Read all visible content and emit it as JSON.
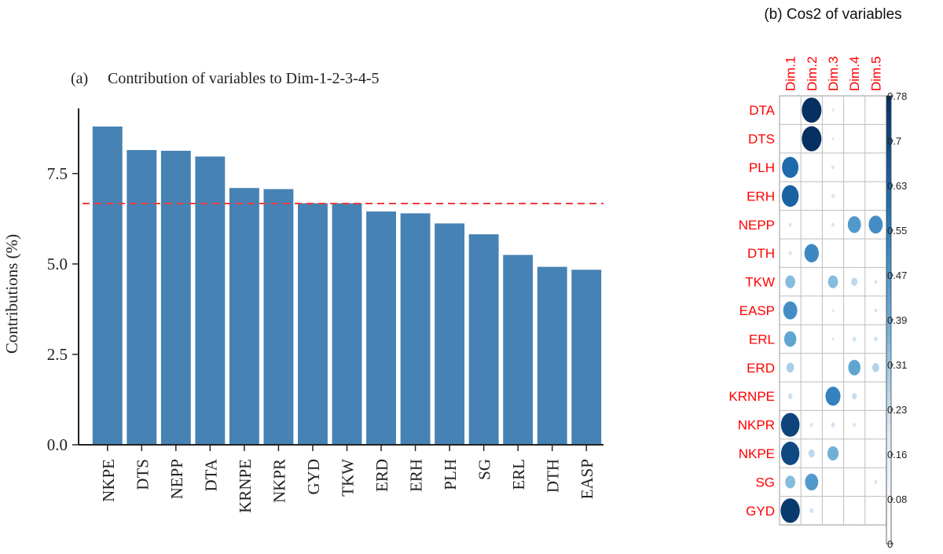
{
  "chart_data": [
    {
      "type": "bar",
      "panel_label": "(a)",
      "title": "Contribution of variables to Dim-1-2-3-4-5",
      "xlabel": "",
      "ylabel": "Contributions (%)",
      "categories": [
        "NKPE",
        "DTS",
        "NEPP",
        "DTA",
        "KRNPE",
        "NKPR",
        "GYD",
        "TKW",
        "ERD",
        "ERH",
        "PLH",
        "SG",
        "ERL",
        "DTH",
        "EASP"
      ],
      "values": [
        8.8,
        8.15,
        8.13,
        7.97,
        7.1,
        7.07,
        6.68,
        6.68,
        6.45,
        6.4,
        6.12,
        5.82,
        5.25,
        4.92,
        4.84
      ],
      "ylim": [
        0,
        9.3
      ],
      "yticks": [
        0.0,
        2.5,
        5.0,
        7.5
      ],
      "ytick_labels": [
        "0.0",
        "2.5",
        "5.0",
        "7.5"
      ],
      "reference_line": 6.67,
      "bar_color": "#4682b4",
      "reference_color": "#f03c3c"
    },
    {
      "type": "heatmap",
      "title": "(b) Cos2 of variables",
      "columns": [
        "Dim.1",
        "Dim.2",
        "Dim.3",
        "Dim.4",
        "Dim.5"
      ],
      "rows": [
        "DTA",
        "DTS",
        "PLH",
        "ERH",
        "NEPP",
        "DTH",
        "TKW",
        "EASP",
        "ERL",
        "ERD",
        "KRNPE",
        "NKPR",
        "NKPE",
        "SG",
        "GYD"
      ],
      "values": [
        [
          0.0,
          0.78,
          0.01,
          0.0,
          0.0
        ],
        [
          0.0,
          0.78,
          0.01,
          0.0,
          0.0
        ],
        [
          0.55,
          0.0,
          0.02,
          0.0,
          0.0
        ],
        [
          0.58,
          0.0,
          0.02,
          0.0,
          0.0
        ],
        [
          0.02,
          0.0,
          0.02,
          0.35,
          0.4
        ],
        [
          0.02,
          0.42,
          0.0,
          0.0,
          0.0
        ],
        [
          0.2,
          0.0,
          0.2,
          0.08,
          0.02
        ],
        [
          0.4,
          0.0,
          0.01,
          0.0,
          0.02
        ],
        [
          0.3,
          0.0,
          0.01,
          0.03,
          0.03
        ],
        [
          0.12,
          0.0,
          0.0,
          0.3,
          0.1
        ],
        [
          0.04,
          0.0,
          0.45,
          0.05,
          0.0
        ],
        [
          0.7,
          0.02,
          0.03,
          0.02,
          0.0
        ],
        [
          0.68,
          0.08,
          0.25,
          0.0,
          0.0
        ],
        [
          0.2,
          0.35,
          0.0,
          0.0,
          0.02
        ],
        [
          0.74,
          0.03,
          0.0,
          0.0,
          0.0
        ]
      ],
      "colorbar_ticks": [
        "0.78",
        "0.7",
        "0.63",
        "0.55",
        "0.47",
        "0.39",
        "0.31",
        "0.23",
        "0.16",
        "0.08",
        "0"
      ],
      "colorbar_range": [
        0,
        0.78
      ],
      "label_color": "#ff0000",
      "high_color": "#053061",
      "low_color": "#ffffff"
    }
  ]
}
